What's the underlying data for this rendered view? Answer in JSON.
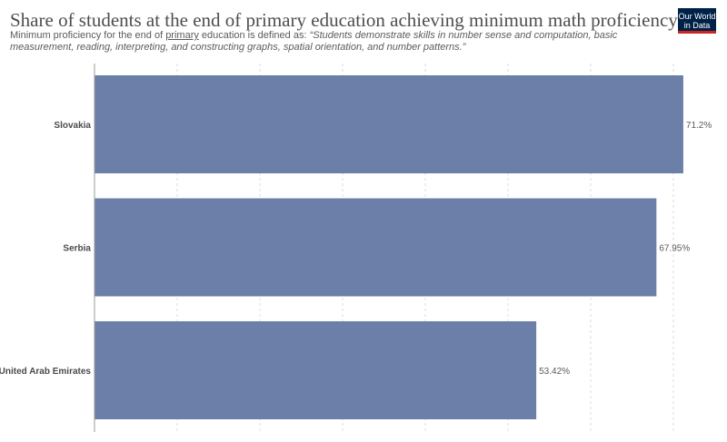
{
  "header": {
    "title": "Share of students at the end of primary education achieving minimum math proficiency",
    "subtitle_prefix": "Minimum proficiency for the end of ",
    "subtitle_link": "primary",
    "subtitle_mid": " education is defined as: ",
    "subtitle_quote": "“Students demonstrate skills in number sense and computation, basic measurement, reading, interpreting, and constructing graphs, spatial orientation, and number patterns.”"
  },
  "logo": {
    "line1": "Our World",
    "line2": "in Data",
    "colors": {
      "background": "#002147",
      "stripe": "#ce261e"
    }
  },
  "chart_data": {
    "type": "bar",
    "orientation": "horizontal",
    "categories": [
      "Slovakia",
      "Serbia",
      "United Arab Emirates"
    ],
    "values": [
      71.2,
      67.95,
      53.42
    ],
    "value_labels": [
      "71.2%",
      "67.95%",
      "53.42%"
    ],
    "xlim": [
      0,
      70
    ],
    "grid": true,
    "bar_color": "#6b7fa8"
  }
}
